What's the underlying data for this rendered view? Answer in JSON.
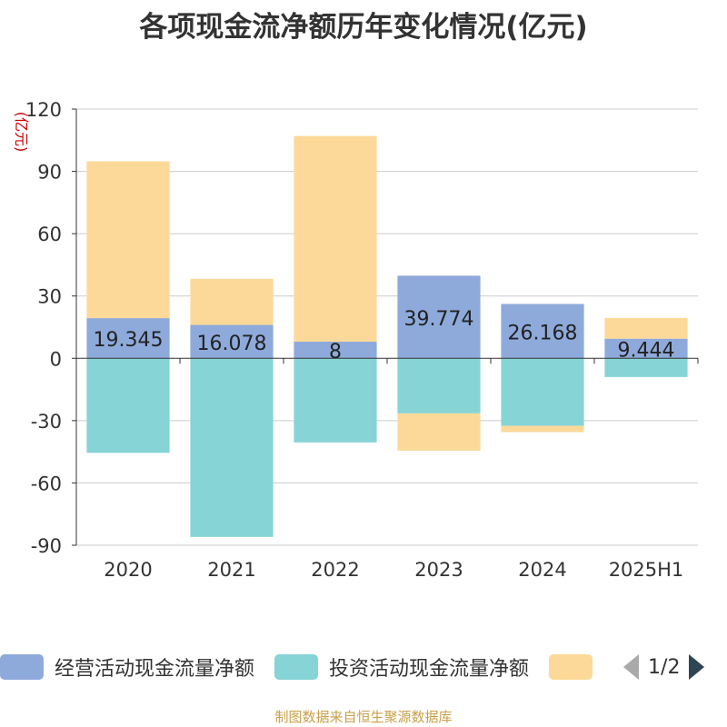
{
  "title": "各项现金流净额历年变化情况(亿元)",
  "source_note": "制图数据来自恒生聚源数据库",
  "legend": {
    "items": [
      {
        "label": "经营活动现金流量净额",
        "color": "#8eaadb"
      },
      {
        "label": "投资活动现金流量净额",
        "color": "#86d4d6"
      },
      {
        "label": "",
        "color": "#fdd999"
      }
    ],
    "page": "1/2"
  },
  "chart_data": {
    "type": "bar",
    "stacked": true,
    "ylabel": "(亿元)",
    "ylabel_color": "#cc0000",
    "ylim": [
      -90,
      120
    ],
    "yticks": [
      120,
      90,
      60,
      30,
      0,
      -30,
      -60,
      -90
    ],
    "grid": true,
    "legend_position": "bottom",
    "categories": [
      "2020",
      "2021",
      "2022",
      "2023",
      "2024",
      "2025H1"
    ],
    "series": [
      {
        "name": "经营活动现金流量净额",
        "color": "#8eaadb",
        "values": [
          19.345,
          16.078,
          8,
          39.774,
          26.168,
          9.444
        ],
        "labels": [
          "19.345",
          "16.078",
          "8",
          "39.774",
          "26.168",
          "9.444"
        ]
      },
      {
        "name": "投资活动现金流量净额",
        "color": "#86d4d6",
        "values": [
          -45.5,
          -86.0,
          -40.5,
          -26.5,
          -32.5,
          -9.0
        ]
      },
      {
        "name": "",
        "color": "#fdd999",
        "values": [
          75.5,
          22.2,
          99.0,
          -18.0,
          -3.0,
          10.0
        ]
      }
    ]
  }
}
